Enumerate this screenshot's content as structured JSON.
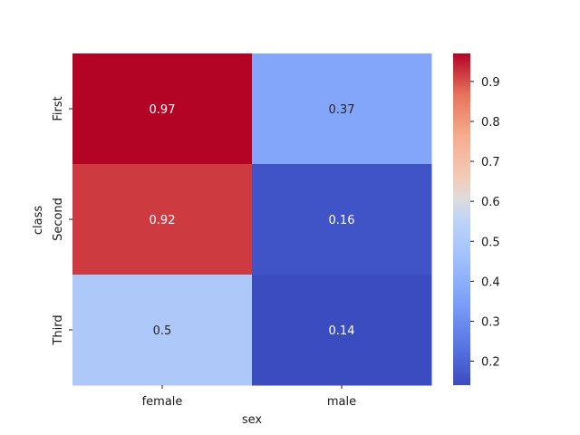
{
  "chart_data": {
    "type": "heatmap",
    "title": "",
    "xlabel": "sex",
    "ylabel": "class",
    "x_categories": [
      "female",
      "male"
    ],
    "y_categories": [
      "First",
      "Second",
      "Third"
    ],
    "values": [
      [
        0.97,
        0.37
      ],
      [
        0.92,
        0.16
      ],
      [
        0.5,
        0.14
      ]
    ],
    "value_labels": [
      [
        "0.97",
        "0.37"
      ],
      [
        "0.92",
        "0.16"
      ],
      [
        "0.5",
        "0.14"
      ]
    ],
    "colormap": "coolwarm",
    "color_range": [
      0.14,
      0.97
    ],
    "colorbar_ticks": [
      0.2,
      0.3,
      0.4,
      0.5,
      0.6,
      0.7,
      0.8,
      0.9
    ],
    "colorbar_tick_labels": [
      "0.2",
      "0.3",
      "0.4",
      "0.5",
      "0.6",
      "0.7",
      "0.8",
      "0.9"
    ],
    "annotations": true,
    "grid": false,
    "legend": "colorbar-right"
  }
}
